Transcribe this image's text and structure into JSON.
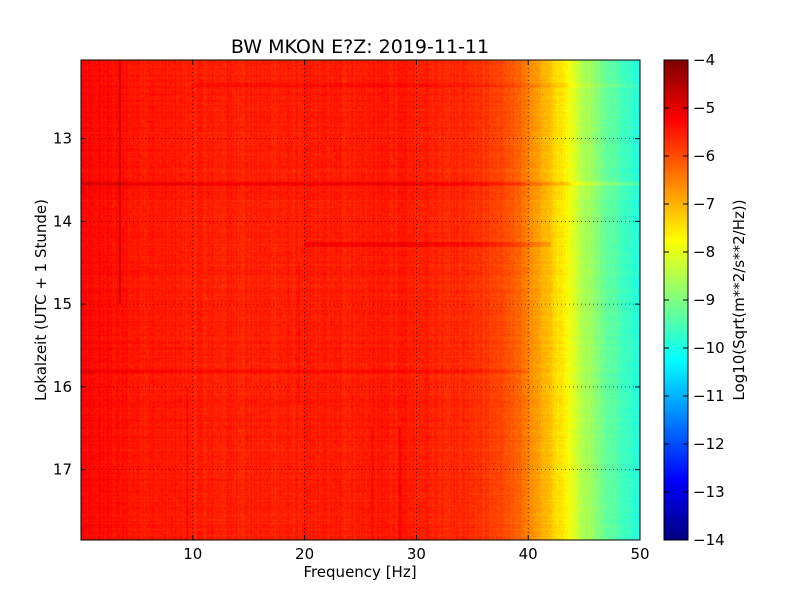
{
  "chart_data": {
    "type": "heatmap",
    "title": "BW MKON E?Z: 2019-11-11",
    "xlabel": "Frequency [Hz]",
    "ylabel": "Lokalzeit (UTC + 1 Stunde)",
    "xlim": [
      0,
      50
    ],
    "ylim": [
      17.85,
      12.05
    ],
    "x_ticks": [
      10,
      20,
      30,
      40,
      50
    ],
    "y_ticks": [
      13,
      14,
      15,
      16,
      17
    ],
    "y_inverted": true,
    "grid": true,
    "grid_style": "dotted",
    "colormap": "jet",
    "colorbar": {
      "label": "Log10(Sqrt(m**2/s**2/Hz))",
      "range": [
        -14,
        -4
      ],
      "ticks": [
        -4,
        -5,
        -6,
        -7,
        -8,
        -9,
        -10,
        -11,
        -12,
        -13,
        -14
      ]
    },
    "frequency_profile": [
      {
        "hz": 0,
        "log_psd": -5.3
      },
      {
        "hz": 5,
        "log_psd": -5.45
      },
      {
        "hz": 10,
        "log_psd": -5.55
      },
      {
        "hz": 20,
        "log_psd": -5.55
      },
      {
        "hz": 28,
        "log_psd": -5.5
      },
      {
        "hz": 35,
        "log_psd": -5.65
      },
      {
        "hz": 38,
        "log_psd": -6.0
      },
      {
        "hz": 40,
        "log_psd": -6.5
      },
      {
        "hz": 42,
        "log_psd": -7.2
      },
      {
        "hz": 43.5,
        "log_psd": -7.7
      },
      {
        "hz": 44.5,
        "log_psd": -8.3
      },
      {
        "hz": 46,
        "log_psd": -8.9
      },
      {
        "hz": 48,
        "log_psd": -9.5
      },
      {
        "hz": 50,
        "log_psd": -10.0
      }
    ],
    "features": [
      {
        "kind": "horizontal_band",
        "time": 13.55,
        "hz_from": 0,
        "hz_to": 50,
        "delta": 0.4
      },
      {
        "kind": "horizontal_band",
        "time": 14.28,
        "hz_from": 20,
        "hz_to": 42,
        "delta": 0.35
      },
      {
        "kind": "horizontal_band",
        "time": 12.35,
        "hz_from": 10,
        "hz_to": 50,
        "delta": 0.2
      },
      {
        "kind": "horizontal_band",
        "time": 15.82,
        "hz_from": 0,
        "hz_to": 40,
        "delta": 0.2
      },
      {
        "kind": "vertical_line",
        "hz": 3.5,
        "time_from": 12.05,
        "time_to": 15.0,
        "delta": 0.6
      },
      {
        "kind": "vertical_line",
        "hz": 9.5,
        "time_from": 16.0,
        "time_to": 17.85,
        "delta": 0.3
      },
      {
        "kind": "vertical_line",
        "hz": 19.5,
        "time_from": 14.5,
        "time_to": 16.2,
        "delta": 0.25
      },
      {
        "kind": "vertical_line",
        "hz": 26,
        "time_from": 16.5,
        "time_to": 17.85,
        "delta": 0.25
      },
      {
        "kind": "vertical_line",
        "hz": 28.5,
        "time_from": 16.5,
        "time_to": 17.85,
        "delta": 0.3
      }
    ]
  }
}
